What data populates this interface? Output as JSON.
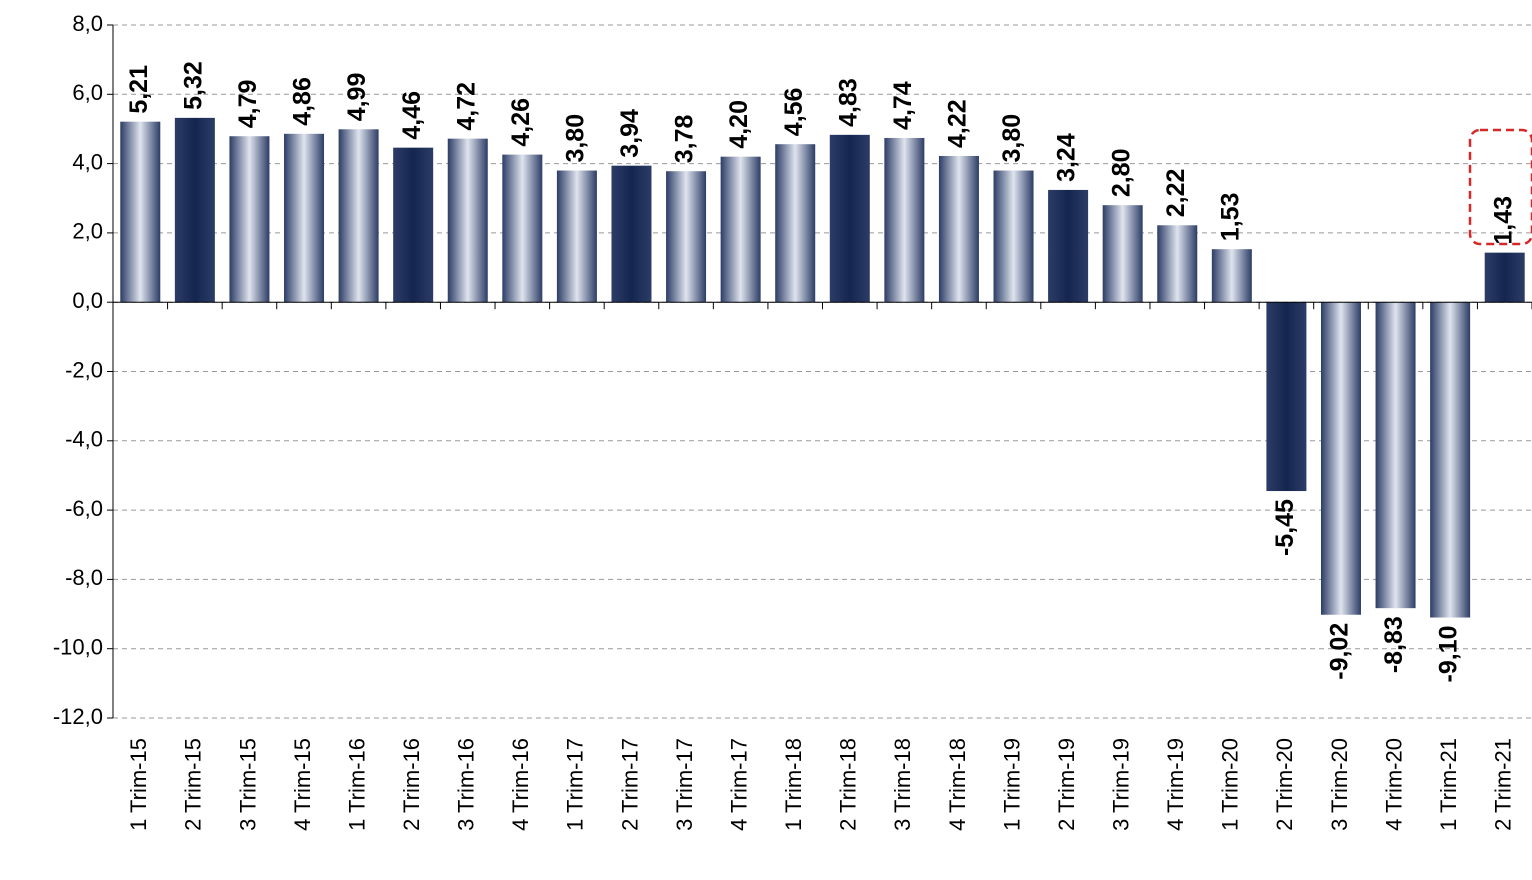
{
  "chart_data": {
    "type": "bar",
    "categories": [
      "1 Trim-15",
      "2 Trim-15",
      "3 Trim-15",
      "4 Trim-15",
      "1 Trim-16",
      "2 Trim-16",
      "3 Trim-16",
      "4 Trim-16",
      "1 Trim-17",
      "2 Trim-17",
      "3 Trim-17",
      "4 Trim-17",
      "1 Trim-18",
      "2 Trim-18",
      "3 Trim-18",
      "4 Trim-18",
      "1 Trim-19",
      "2 Trim-19",
      "3 Trim-19",
      "4 Trim-19",
      "1 Trim-20",
      "2 Trim-20",
      "3 Trim-20",
      "4 Trim-20",
      "1 Trim-21",
      "2 Trim-21"
    ],
    "values": [
      5.21,
      5.32,
      4.79,
      4.86,
      4.99,
      4.46,
      4.72,
      4.26,
      3.8,
      3.94,
      3.78,
      4.2,
      4.56,
      4.83,
      4.74,
      4.22,
      3.8,
      3.24,
      2.8,
      2.22,
      1.53,
      -5.45,
      -9.02,
      -8.83,
      -9.1,
      1.43
    ],
    "value_labels": [
      "5,21",
      "5,32",
      "4,79",
      "4,86",
      "4,99",
      "4,46",
      "4,72",
      "4,26",
      "3,80",
      "3,94",
      "3,78",
      "4,20",
      "4,56",
      "4,83",
      "4,74",
      "4,22",
      "3,80",
      "3,24",
      "2,80",
      "2,22",
      "1,53",
      "-5,45",
      "-9,02",
      "-8,83",
      "-9,10",
      "1,43"
    ],
    "colors": [
      "#dfe4ee",
      "#14264f",
      "#dfe4ee",
      "#dfe4ee",
      "#dfe4ee",
      "#14264f",
      "#dfe4ee",
      "#dfe4ee",
      "#dfe4ee",
      "#14264f",
      "#dfe4ee",
      "#dfe4ee",
      "#dfe4ee",
      "#14264f",
      "#dfe4ee",
      "#dfe4ee",
      "#dfe4ee",
      "#14264f",
      "#dfe4ee",
      "#dfe4ee",
      "#dfe4ee",
      "#14264f",
      "#dfe4ee",
      "#dfe4ee",
      "#dfe4ee",
      "#14264f"
    ],
    "ylim": [
      -12,
      8
    ],
    "yticks": [
      {
        "value": -12,
        "label": "-12,0"
      },
      {
        "value": -10,
        "label": "-10,0"
      },
      {
        "value": -8,
        "label": "-8,0"
      },
      {
        "value": -6,
        "label": "-6,0"
      },
      {
        "value": -4,
        "label": "-4,0"
      },
      {
        "value": -2,
        "label": "-2,0"
      },
      {
        "value": 0,
        "label": "0,0"
      },
      {
        "value": 2,
        "label": "2,0"
      },
      {
        "value": 4,
        "label": "4,0"
      },
      {
        "value": 6,
        "label": "6,0"
      },
      {
        "value": 8,
        "label": "8,0"
      }
    ],
    "grid": true
  }
}
